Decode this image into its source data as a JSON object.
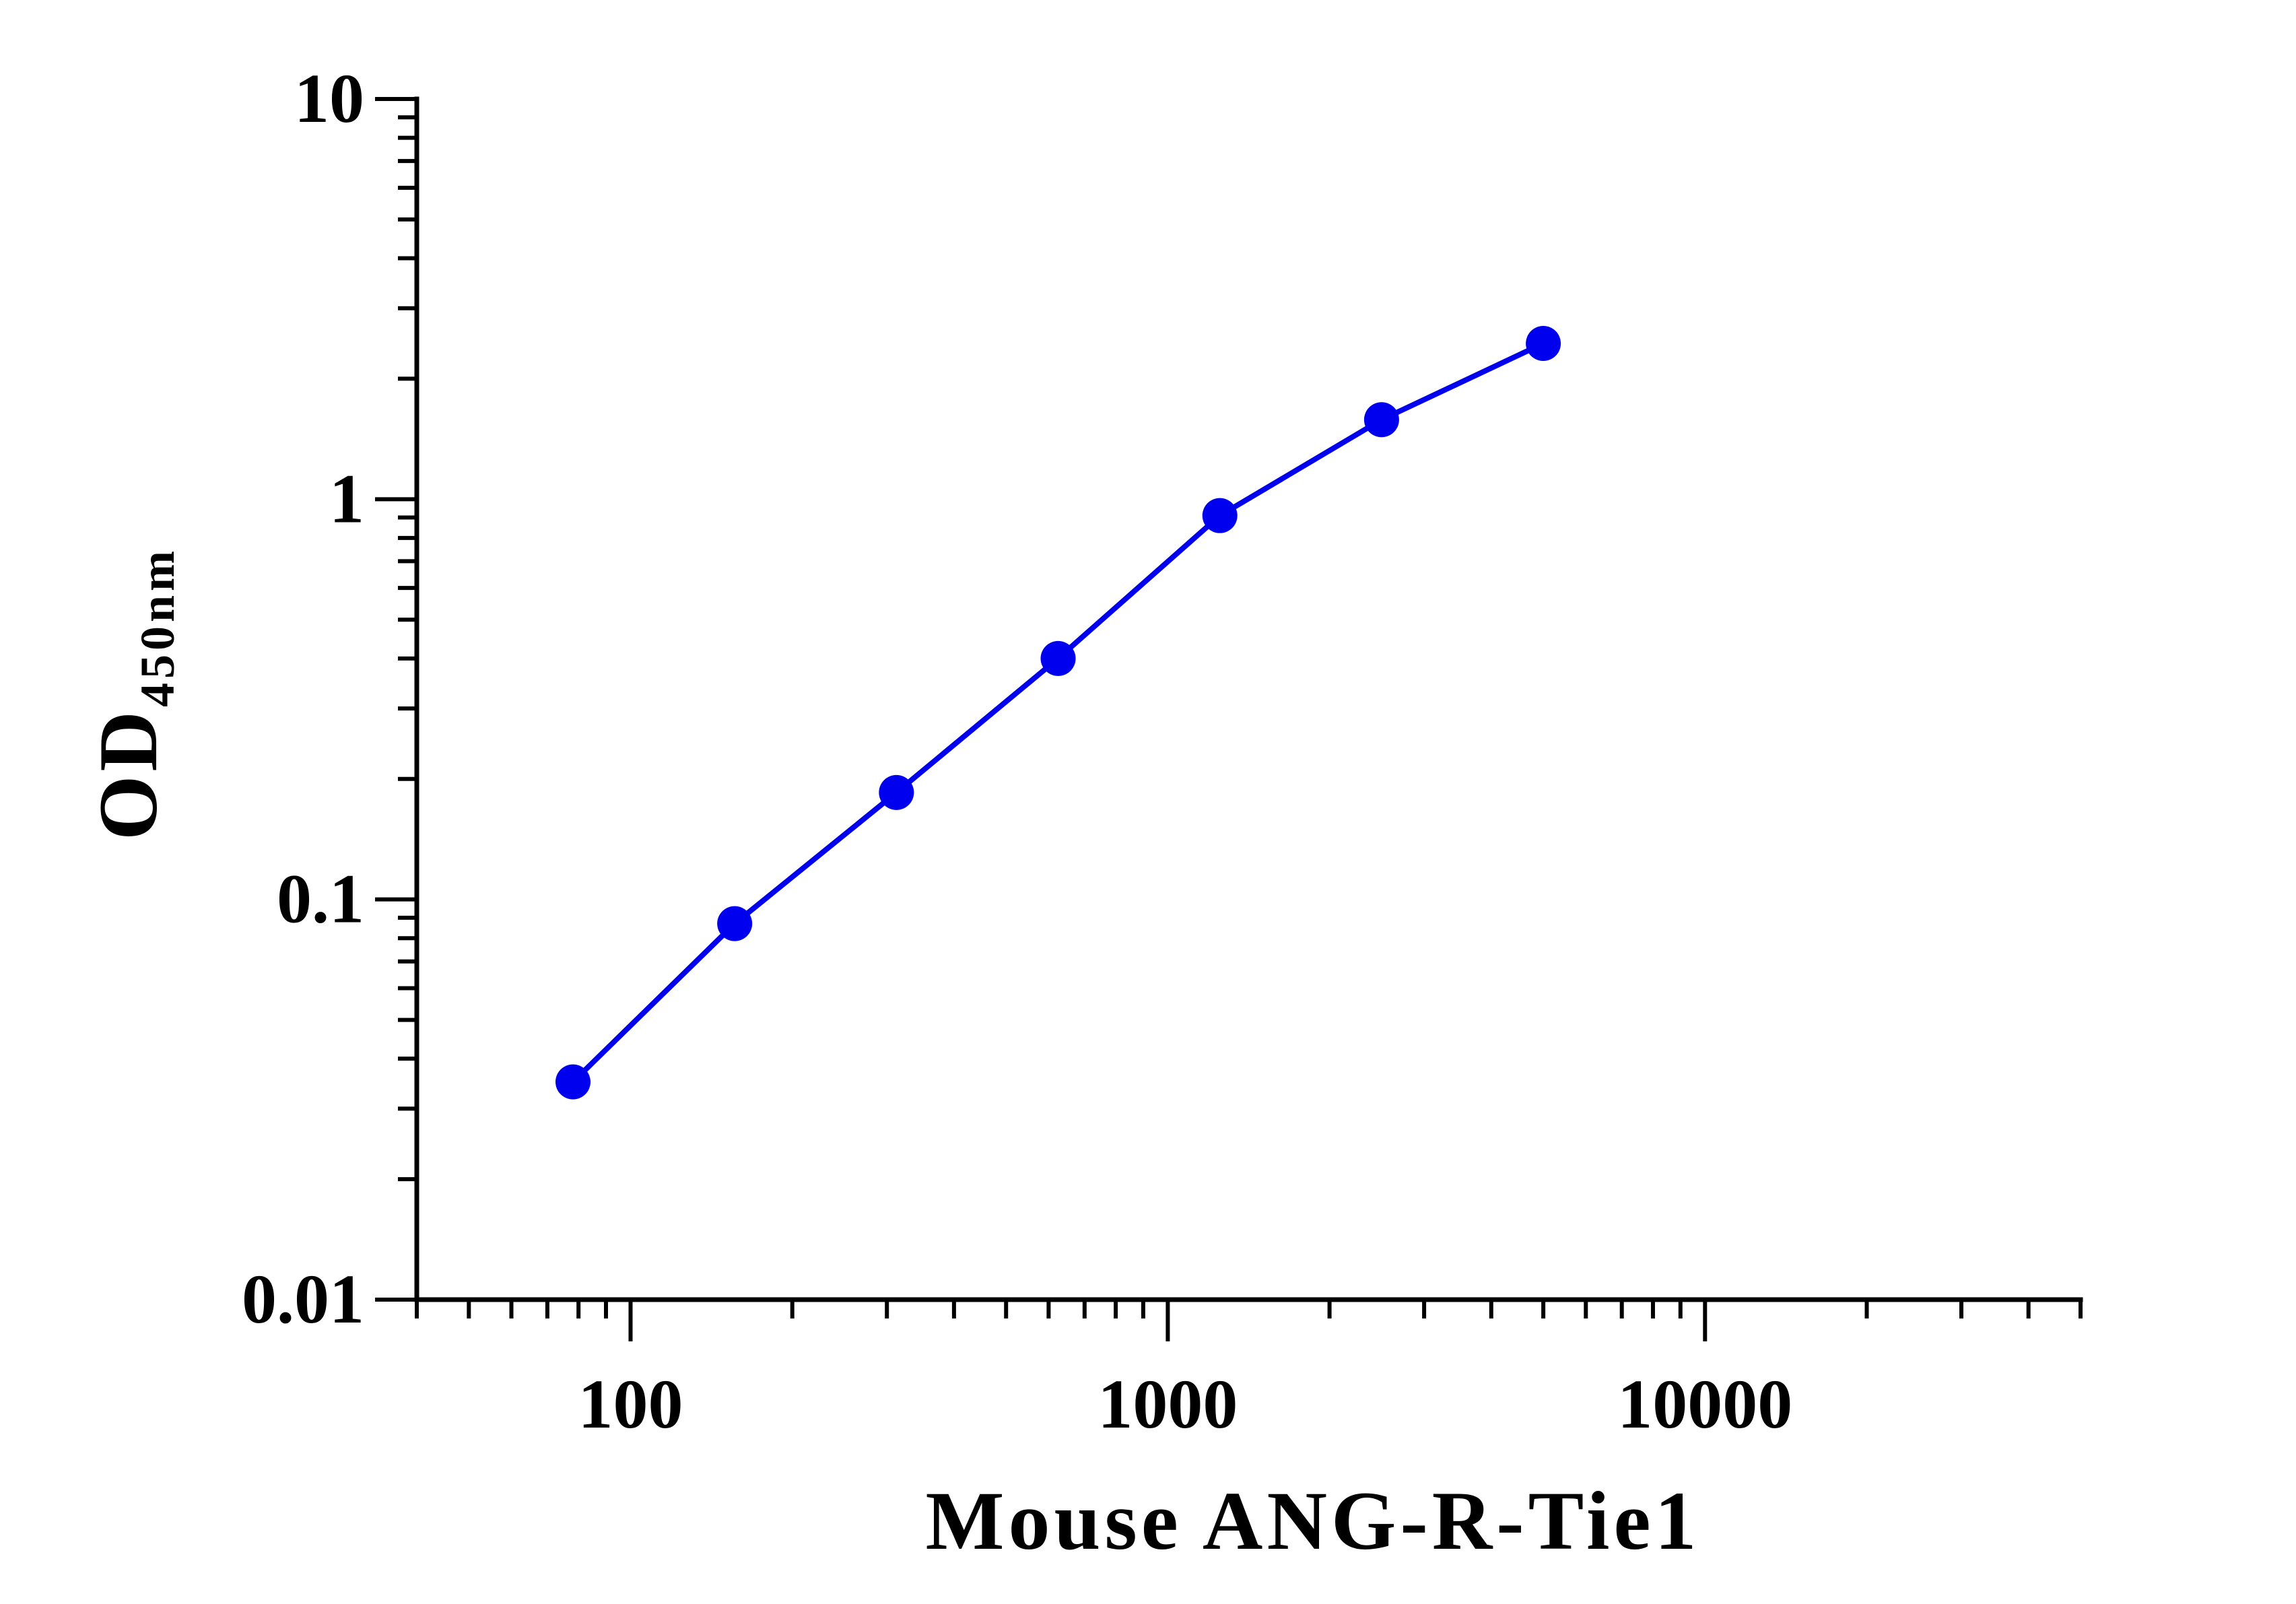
{
  "chart_data": {
    "type": "line",
    "xlabel": "Mouse ANG-R-Tie1",
    "ylabel": "OD",
    "ylabel_subscript": "450nm",
    "x_scale": "log",
    "y_scale": "log",
    "xlim": [
      40,
      50000
    ],
    "ylim": [
      0.01,
      10
    ],
    "x_tick_labels": [
      {
        "value": 100,
        "label": "100"
      },
      {
        "value": 1000,
        "label": "1000"
      },
      {
        "value": 10000,
        "label": "10000"
      }
    ],
    "y_tick_labels": [
      {
        "value": 0.01,
        "label": "0.01"
      },
      {
        "value": 0.1,
        "label": "0.1"
      },
      {
        "value": 1,
        "label": "1"
      },
      {
        "value": 10,
        "label": "10"
      }
    ],
    "grid": false,
    "legend": "none",
    "series": [
      {
        "color": "#0000ee",
        "marker": "circle",
        "points": [
          {
            "x": 78.13,
            "y": 0.035
          },
          {
            "x": 156.25,
            "y": 0.087
          },
          {
            "x": 312.5,
            "y": 0.185
          },
          {
            "x": 625,
            "y": 0.4
          },
          {
            "x": 1250,
            "y": 0.91
          },
          {
            "x": 2500,
            "y": 1.58
          },
          {
            "x": 5000,
            "y": 2.45
          }
        ]
      }
    ]
  }
}
